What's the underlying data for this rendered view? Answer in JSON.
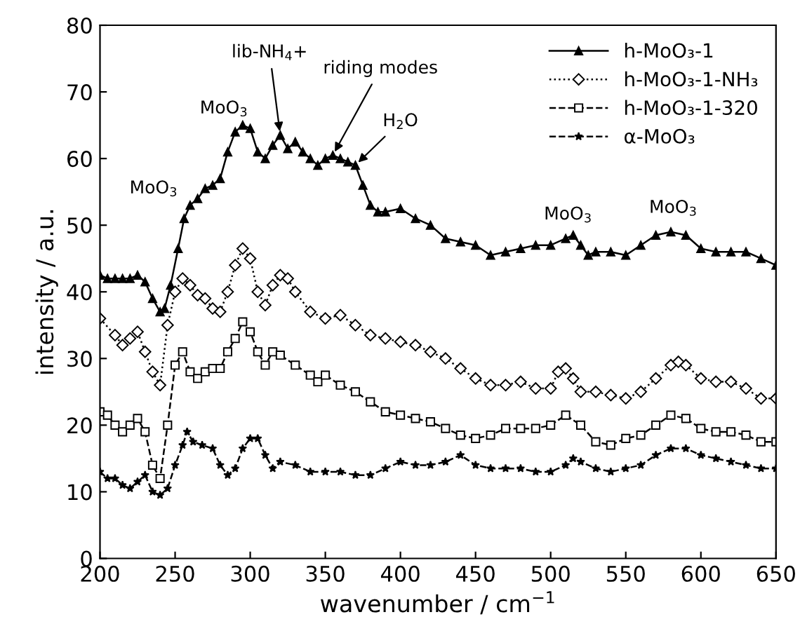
{
  "chart_data": {
    "type": "line",
    "xlabel": "wavenumber / cm$^{−1}$",
    "ylabel": "intensity / a.u.",
    "xlim": [
      200,
      650
    ],
    "ylim": [
      0,
      80
    ],
    "xticks": [
      200,
      250,
      300,
      350,
      400,
      450,
      500,
      550,
      600,
      650
    ],
    "yticks": [
      0,
      10,
      20,
      30,
      40,
      50,
      60,
      70,
      80
    ],
    "grid": false,
    "legend": "top right",
    "series": [
      {
        "name": "h-MoO₃-1",
        "color": "#000000",
        "marker": "triangle",
        "line_style": "solid",
        "x": [
          200,
          205,
          210,
          215,
          220,
          225,
          230,
          235,
          240,
          243,
          247,
          252,
          256,
          260,
          265,
          270,
          275,
          280,
          285,
          290,
          295,
          300,
          305,
          310,
          315,
          320,
          325,
          330,
          335,
          340,
          345,
          350,
          355,
          360,
          365,
          370,
          375,
          380,
          385,
          390,
          400,
          410,
          420,
          430,
          440,
          450,
          460,
          470,
          480,
          490,
          500,
          510,
          515,
          520,
          525,
          530,
          540,
          550,
          560,
          570,
          580,
          590,
          600,
          610,
          620,
          630,
          640,
          650
        ],
        "values": [
          42.5,
          42,
          42,
          42,
          42,
          42.5,
          41.5,
          39,
          37,
          37.5,
          41,
          46.5,
          51,
          53,
          54,
          55.5,
          56,
          57,
          61,
          64,
          65,
          64.5,
          61,
          60,
          62,
          63.5,
          61.5,
          62.5,
          61,
          60,
          59,
          60,
          60.5,
          60,
          59.5,
          59,
          56,
          53,
          52,
          52,
          52.5,
          51,
          50,
          48,
          47.5,
          47,
          45.5,
          46,
          46.5,
          47,
          47,
          48,
          48.5,
          47,
          45.5,
          46,
          46,
          45.5,
          47,
          48.5,
          49,
          48.5,
          46.5,
          46,
          46,
          46,
          45,
          44
        ]
      },
      {
        "name": "h-MoO₃-1-NH₃",
        "color": "#000000",
        "marker": "diamond",
        "line_style": "dotted",
        "x": [
          200,
          210,
          215,
          220,
          225,
          230,
          235,
          240,
          245,
          250,
          255,
          260,
          265,
          270,
          275,
          280,
          285,
          290,
          295,
          300,
          305,
          310,
          315,
          320,
          325,
          330,
          340,
          350,
          360,
          370,
          380,
          390,
          400,
          410,
          420,
          430,
          440,
          450,
          460,
          470,
          480,
          490,
          500,
          505,
          510,
          515,
          520,
          530,
          540,
          550,
          560,
          570,
          580,
          585,
          590,
          600,
          610,
          620,
          630,
          640,
          650
        ],
        "values": [
          36,
          33.5,
          32,
          33,
          34,
          31,
          28,
          26,
          35,
          40,
          42,
          41,
          39.5,
          39,
          37.5,
          37,
          40,
          44,
          46.5,
          45,
          40,
          38,
          41,
          42.5,
          42,
          40,
          37,
          36,
          36.5,
          35,
          33.5,
          33,
          32.5,
          32,
          31,
          30,
          28.5,
          27,
          26,
          26,
          26.5,
          25.5,
          25.5,
          28,
          28.5,
          27,
          25,
          25,
          24.5,
          24,
          25,
          27,
          29,
          29.5,
          29,
          27,
          26.5,
          26.5,
          25.5,
          24,
          24
        ]
      },
      {
        "name": "h-MoO₃-1-320",
        "color": "#000000",
        "marker": "square",
        "line_style": "dashed",
        "x": [
          200,
          205,
          210,
          215,
          220,
          225,
          230,
          235,
          240,
          245,
          250,
          255,
          260,
          265,
          270,
          275,
          280,
          285,
          290,
          295,
          300,
          305,
          310,
          315,
          320,
          330,
          340,
          345,
          350,
          360,
          370,
          380,
          390,
          400,
          410,
          420,
          430,
          440,
          450,
          460,
          470,
          480,
          490,
          500,
          510,
          520,
          530,
          540,
          550,
          560,
          570,
          580,
          590,
          600,
          610,
          620,
          630,
          640,
          650
        ],
        "values": [
          22,
          21.5,
          20,
          19,
          20,
          21,
          19,
          14,
          12,
          20,
          29,
          31,
          28,
          27,
          28,
          28.5,
          28.5,
          31,
          33,
          35.5,
          34,
          31,
          29,
          31,
          30.5,
          29,
          27.5,
          26.5,
          27.5,
          26,
          25,
          23.5,
          22,
          21.5,
          21,
          20.5,
          19.5,
          18.5,
          18,
          18.5,
          19.5,
          19.5,
          19.5,
          20,
          21.5,
          20,
          17.5,
          17,
          18,
          18.5,
          20,
          21.5,
          21,
          19.5,
          19,
          19,
          18.5,
          17.5,
          17.5
        ]
      },
      {
        "name": "α-MoO₃",
        "color": "#000000",
        "marker": "star",
        "line_style": "dashed",
        "x": [
          200,
          205,
          210,
          215,
          220,
          225,
          230,
          235,
          240,
          245,
          250,
          255,
          258,
          262,
          268,
          275,
          280,
          285,
          290,
          295,
          300,
          305,
          310,
          315,
          320,
          330,
          340,
          350,
          360,
          370,
          380,
          390,
          400,
          410,
          420,
          430,
          440,
          450,
          460,
          470,
          480,
          490,
          500,
          510,
          515,
          520,
          530,
          540,
          550,
          560,
          570,
          580,
          590,
          600,
          610,
          620,
          630,
          640,
          650
        ],
        "values": [
          13,
          12,
          12,
          11,
          10.5,
          11.5,
          12.5,
          10,
          9.5,
          10.5,
          14,
          17,
          19,
          17.5,
          17,
          16.5,
          14,
          12.5,
          13.5,
          16.5,
          18,
          18,
          15.5,
          13.5,
          14.5,
          14,
          13,
          13,
          13,
          12.5,
          12.5,
          13.5,
          14.5,
          14,
          14,
          14.5,
          15.5,
          14,
          13.5,
          13.5,
          13.5,
          13,
          13,
          14,
          15,
          14.5,
          13.5,
          13,
          13.5,
          14,
          15.5,
          16.5,
          16.5,
          15.5,
          15,
          14.5,
          14,
          13.5,
          13.5
        ]
      }
    ],
    "annotations": [
      {
        "text": "MoO$_{3}$",
        "x": 256,
        "y": 53
      },
      {
        "text": "MoO$_{3}$",
        "x": 295,
        "y": 65
      },
      {
        "text": "lib-NH$_{4}$+",
        "x": 320,
        "y": 63.5
      },
      {
        "text": "riding modes",
        "x": 355,
        "y": 60.5
      },
      {
        "text": "H$_{2}$O",
        "x": 370,
        "y": 59
      },
      {
        "text": "MoO$_{3}$",
        "x": 515,
        "y": 48.5
      },
      {
        "text": "MoO$_{3}$",
        "x": 585,
        "y": 49.5
      }
    ]
  }
}
